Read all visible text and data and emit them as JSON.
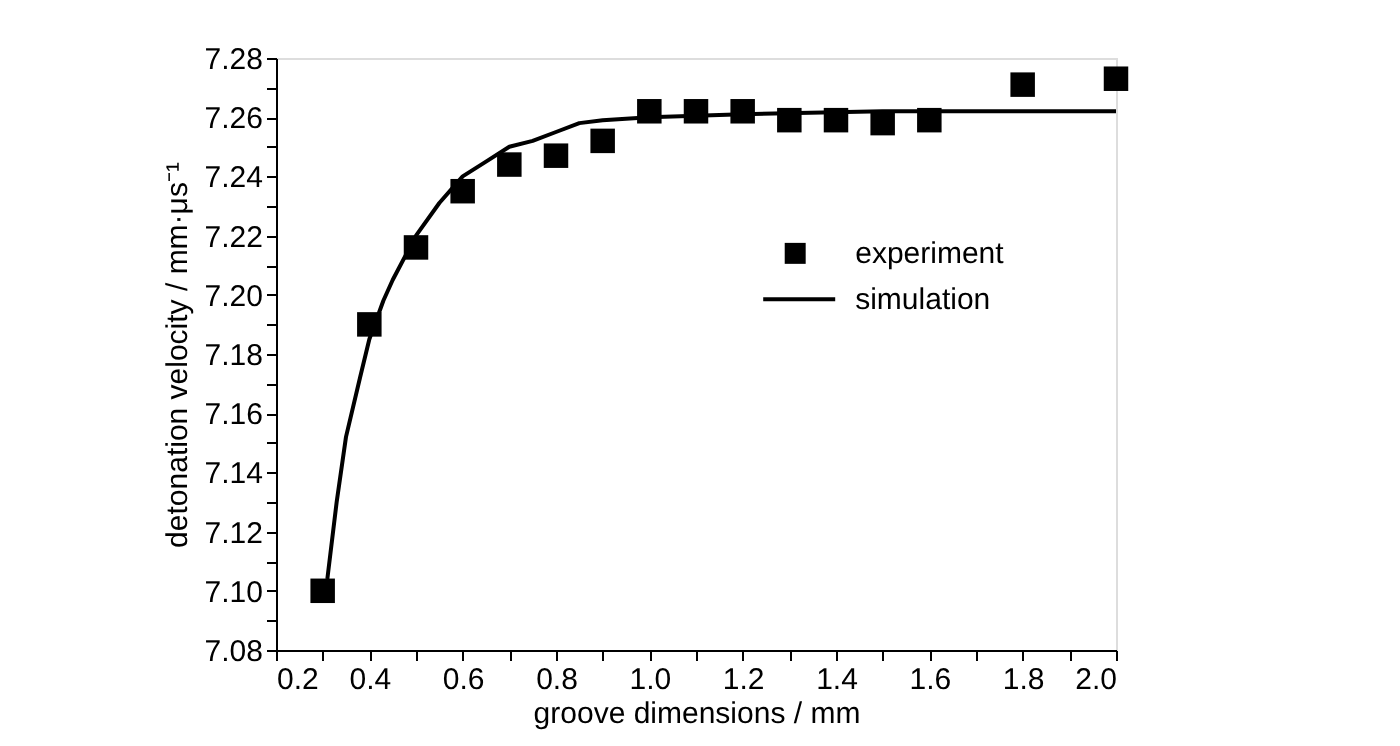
{
  "chart_data": {
    "type": "scatter",
    "xlabel": "groove dimensions / mm",
    "ylabel": "detonation velocity / mm·μs⁻¹",
    "series": [
      {
        "name": "experiment",
        "color": "#000000",
        "marker": "square",
        "x": [
          0.3,
          0.4,
          0.5,
          0.6,
          0.7,
          0.8,
          0.9,
          1.0,
          1.1,
          1.2,
          1.3,
          1.4,
          1.5,
          1.6,
          1.8,
          2.0
        ],
        "values": [
          7.1,
          7.19,
          7.216,
          7.235,
          7.244,
          7.247,
          7.252,
          7.262,
          7.262,
          7.262,
          7.259,
          7.259,
          7.258,
          7.259,
          7.271,
          7.273
        ]
      },
      {
        "name": "simulation",
        "type": "line",
        "color": "#000000",
        "marker": "none",
        "line_style": "solid",
        "x": [
          0.31,
          0.33,
          0.35,
          0.38,
          0.4,
          0.43,
          0.45,
          0.5,
          0.55,
          0.6,
          0.65,
          0.7,
          0.75,
          0.8,
          0.85,
          0.9,
          1.0,
          1.2,
          1.5,
          2.0
        ],
        "values": [
          7.104,
          7.13,
          7.152,
          7.172,
          7.185,
          7.198,
          7.205,
          7.22,
          7.231,
          7.24,
          7.245,
          7.25,
          7.252,
          7.255,
          7.258,
          7.259,
          7.26,
          7.261,
          7.262,
          7.262
        ]
      }
    ],
    "xlim": [
      0.2,
      2.0
    ],
    "xticks": [
      0.2,
      {
        "value": 0.3,
        "label": null
      },
      0.4,
      {
        "value": 0.5,
        "label": null
      },
      0.6,
      {
        "value": 0.7,
        "label": null
      },
      0.8,
      {
        "value": 0.9,
        "label": null
      },
      {
        "value": 1.0,
        "label": "1.0"
      },
      {
        "value": 1.1,
        "label": null
      },
      1.2,
      {
        "value": 1.3,
        "label": null
      },
      1.4,
      {
        "value": 1.5,
        "label": null
      },
      1.6,
      {
        "value": 1.7,
        "label": null
      },
      1.8,
      {
        "value": 1.9,
        "label": null
      },
      {
        "value": 2.0,
        "label": "2.0"
      }
    ],
    "ylim": [
      7.08,
      7.28
    ],
    "yticks": [
      7.08,
      {
        "value": 7.09,
        "label": null
      },
      {
        "value": 7.1,
        "label": "7.10"
      },
      {
        "value": 7.11,
        "label": null
      },
      7.12,
      {
        "value": 7.13,
        "label": null
      },
      7.14,
      {
        "value": 7.15,
        "label": null
      },
      7.16,
      {
        "value": 7.17,
        "label": null
      },
      7.18,
      {
        "value": 7.19,
        "label": null
      },
      {
        "value": 7.2,
        "label": "7.20"
      },
      {
        "value": 7.21,
        "label": null
      },
      7.22,
      {
        "value": 7.23,
        "label": null
      },
      7.24,
      {
        "value": 7.25,
        "label": null
      },
      7.26,
      {
        "value": 7.27,
        "label": null
      },
      7.28
    ],
    "grid": false,
    "legend": "top right"
  }
}
